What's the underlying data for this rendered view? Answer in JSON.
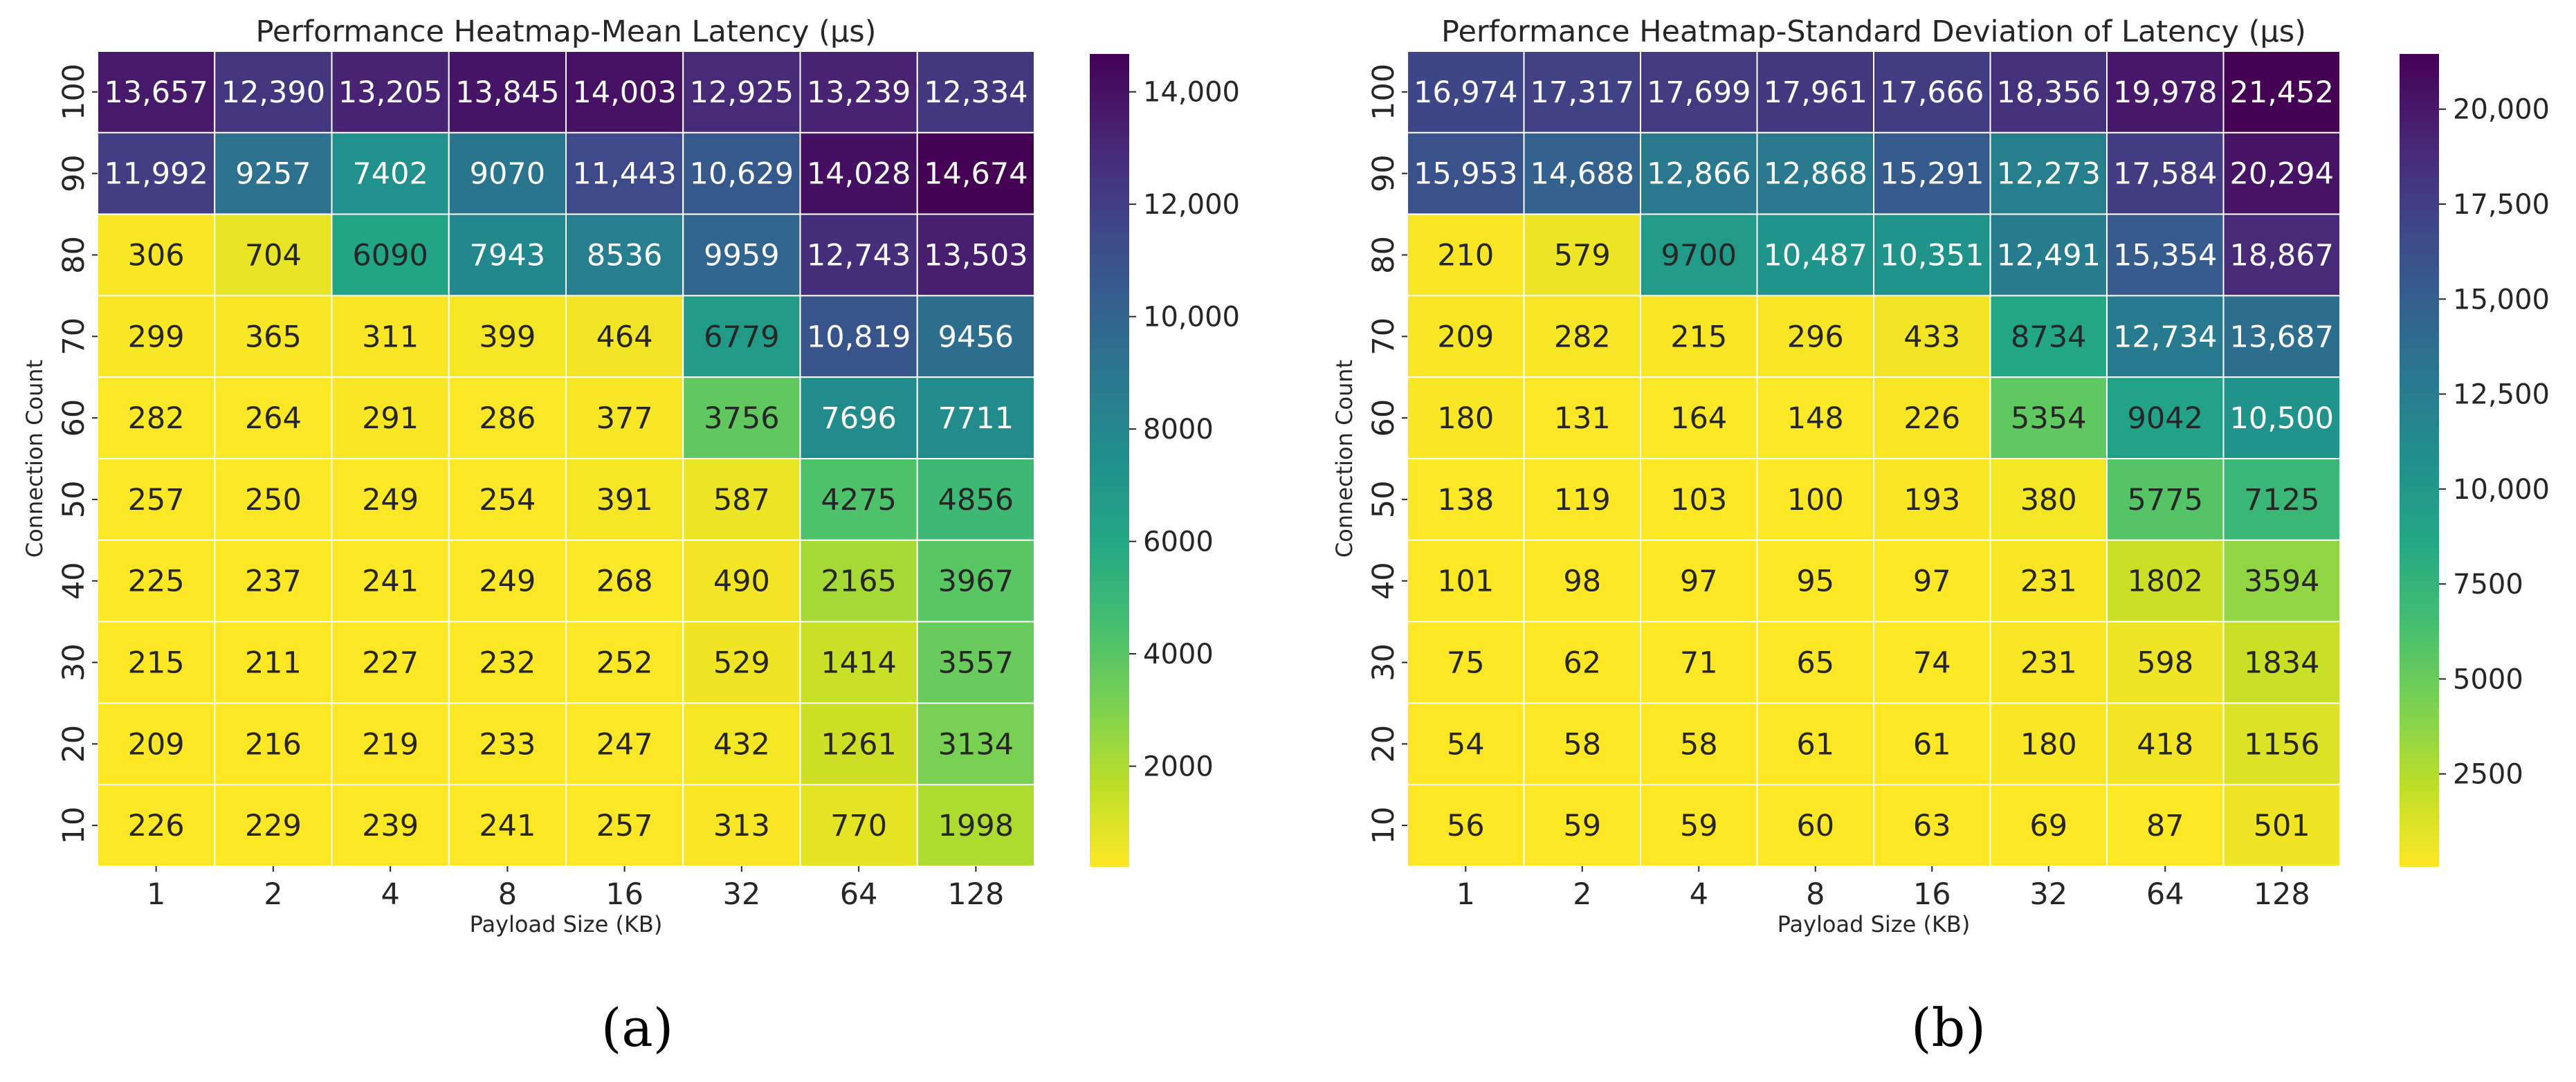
{
  "chart_data": [
    {
      "type": "heatmap",
      "title": "Performance Heatmap-Mean Latency (µs)",
      "xlabel": "Payload Size (KB)",
      "ylabel": "Connection Count",
      "x": [
        "1",
        "2",
        "4",
        "8",
        "16",
        "32",
        "64",
        "128"
      ],
      "y": [
        "100",
        "90",
        "80",
        "70",
        "60",
        "50",
        "40",
        "30",
        "20",
        "10"
      ],
      "values": [
        [
          13657,
          12390,
          13205,
          13845,
          14003,
          12925,
          13239,
          12334
        ],
        [
          11992,
          9257,
          7402,
          9070,
          11443,
          10629,
          14028,
          14674
        ],
        [
          306,
          704,
          6090,
          7943,
          8536,
          9959,
          12743,
          13503
        ],
        [
          299,
          365,
          311,
          399,
          464,
          6779,
          10819,
          9456
        ],
        [
          282,
          264,
          291,
          286,
          377,
          3756,
          7696,
          7711
        ],
        [
          257,
          250,
          249,
          254,
          391,
          587,
          4275,
          4856
        ],
        [
          225,
          237,
          241,
          249,
          268,
          490,
          2165,
          3967
        ],
        [
          215,
          211,
          227,
          232,
          252,
          529,
          1414,
          3557
        ],
        [
          209,
          216,
          219,
          233,
          247,
          432,
          1261,
          3134
        ],
        [
          226,
          229,
          239,
          241,
          257,
          313,
          770,
          1998
        ]
      ],
      "cell_labels": [
        [
          "13,657",
          "12,390",
          "13,205",
          "13,845",
          "14,003",
          "12,925",
          "13,239",
          "12,334"
        ],
        [
          "11,992",
          "9257",
          "7402",
          "9070",
          "11,443",
          "10,629",
          "14,028",
          "14,674"
        ],
        [
          "306",
          "704",
          "6090",
          "7943",
          "8536",
          "9959",
          "12,743",
          "13,503"
        ],
        [
          "299",
          "365",
          "311",
          "399",
          "464",
          "6779",
          "10,819",
          "9456"
        ],
        [
          "282",
          "264",
          "291",
          "286",
          "377",
          "3756",
          "7696",
          "7711"
        ],
        [
          "257",
          "250",
          "249",
          "254",
          "391",
          "587",
          "4275",
          "4856"
        ],
        [
          "225",
          "237",
          "241",
          "249",
          "268",
          "490",
          "2165",
          "3967"
        ],
        [
          "215",
          "211",
          "227",
          "232",
          "252",
          "529",
          "1414",
          "3557"
        ],
        [
          "209",
          "216",
          "219",
          "233",
          "247",
          "432",
          "1261",
          "3134"
        ],
        [
          "226",
          "229",
          "239",
          "241",
          "257",
          "313",
          "770",
          "1998"
        ]
      ],
      "vmin": 209,
      "vmax": 14674,
      "colormap": "viridis_r",
      "colorbar_ticks": [
        2000,
        4000,
        6000,
        8000,
        10000,
        12000,
        14000
      ],
      "colorbar_tick_labels": [
        "2000",
        "4000",
        "6000",
        "8000",
        "10,000",
        "12,000",
        "14,000"
      ],
      "grid": true,
      "legend": "colorbar-right",
      "panel_label": "(a)"
    },
    {
      "type": "heatmap",
      "title": "Performance Heatmap-Standard Deviation of Latency (µs)",
      "xlabel": "Payload Size (KB)",
      "ylabel": "Connection Count",
      "x": [
        "1",
        "2",
        "4",
        "8",
        "16",
        "32",
        "64",
        "128"
      ],
      "y": [
        "100",
        "90",
        "80",
        "70",
        "60",
        "50",
        "40",
        "30",
        "20",
        "10"
      ],
      "values": [
        [
          16974,
          17317,
          17699,
          17961,
          17666,
          18356,
          19978,
          21452
        ],
        [
          15953,
          14688,
          12866,
          12868,
          15291,
          12273,
          17584,
          20294
        ],
        [
          210,
          579,
          9700,
          10487,
          10351,
          12491,
          15354,
          18867
        ],
        [
          209,
          282,
          215,
          296,
          433,
          8734,
          12734,
          13687
        ],
        [
          180,
          131,
          164,
          148,
          226,
          5354,
          9042,
          10500
        ],
        [
          138,
          119,
          103,
          100,
          193,
          380,
          5775,
          7125
        ],
        [
          101,
          98,
          97,
          95,
          97,
          231,
          1802,
          3594
        ],
        [
          75,
          62,
          71,
          65,
          74,
          231,
          598,
          1834
        ],
        [
          54,
          58,
          58,
          61,
          61,
          180,
          418,
          1156
        ],
        [
          56,
          59,
          59,
          60,
          63,
          69,
          87,
          501
        ]
      ],
      "cell_labels": [
        [
          "16,974",
          "17,317",
          "17,699",
          "17,961",
          "17,666",
          "18,356",
          "19,978",
          "21,452"
        ],
        [
          "15,953",
          "14,688",
          "12,866",
          "12,868",
          "15,291",
          "12,273",
          "17,584",
          "20,294"
        ],
        [
          "210",
          "579",
          "9700",
          "10,487",
          "10,351",
          "12,491",
          "15,354",
          "18,867"
        ],
        [
          "209",
          "282",
          "215",
          "296",
          "433",
          "8734",
          "12,734",
          "13,687"
        ],
        [
          "180",
          "131",
          "164",
          "148",
          "226",
          "5354",
          "9042",
          "10,500"
        ],
        [
          "138",
          "119",
          "103",
          "100",
          "193",
          "380",
          "5775",
          "7125"
        ],
        [
          "101",
          "98",
          "97",
          "95",
          "97",
          "231",
          "1802",
          "3594"
        ],
        [
          "75",
          "62",
          "71",
          "65",
          "74",
          "231",
          "598",
          "1834"
        ],
        [
          "54",
          "58",
          "58",
          "61",
          "61",
          "180",
          "418",
          "1156"
        ],
        [
          "56",
          "59",
          "59",
          "60",
          "63",
          "69",
          "87",
          "501"
        ]
      ],
      "vmin": 54,
      "vmax": 21452,
      "colormap": "viridis_r",
      "colorbar_ticks": [
        2500,
        5000,
        7500,
        10000,
        12500,
        15000,
        17500,
        20000
      ],
      "colorbar_tick_labels": [
        "2500",
        "5000",
        "7500",
        "10,000",
        "12,500",
        "15,000",
        "17,500",
        "20,000"
      ],
      "grid": true,
      "legend": "colorbar-right",
      "panel_label": "(b)"
    }
  ]
}
